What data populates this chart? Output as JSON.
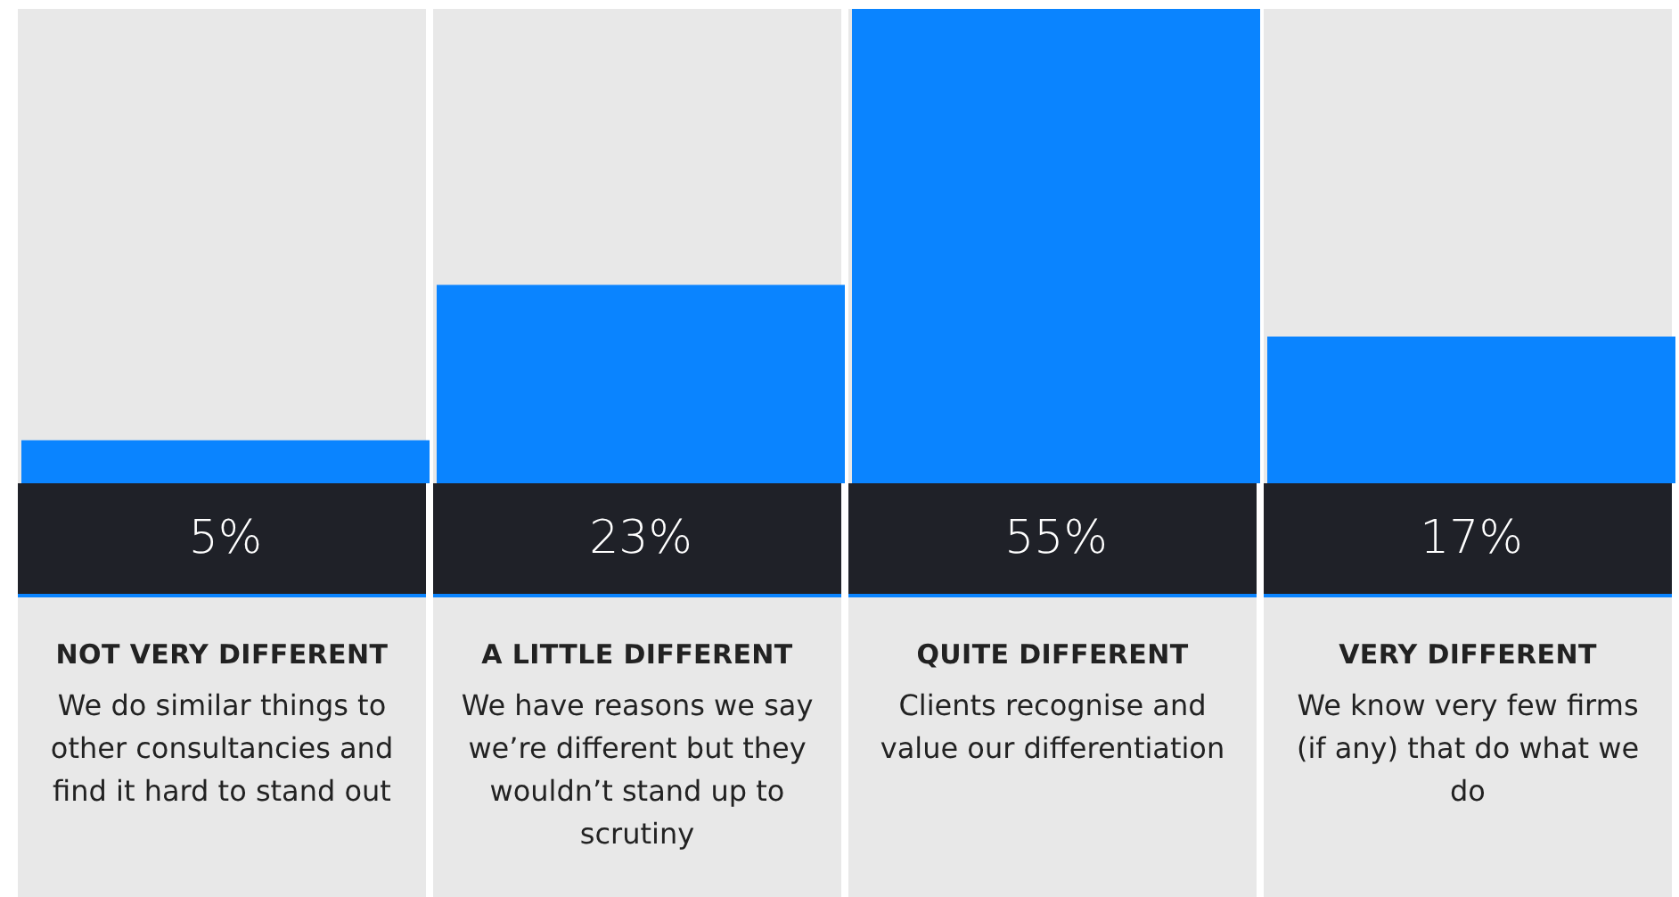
{
  "chart_data": {
    "type": "bar",
    "categories": [
      "NOT VERY DIFFERENT",
      "A LITTLE DIFFERENT",
      "QUITE DIFFERENT",
      "VERY DIFFERENT"
    ],
    "values": [
      5,
      23,
      55,
      17
    ],
    "value_labels": [
      "5%",
      "23%",
      "55%",
      "17%"
    ],
    "color": "#0a84ff",
    "annotations": [
      "We do similar things to other consultancies and find it hard to stand out",
      "We have reasons we say we’re different but they wouldn’t stand up to scrutiny",
      "Clients recognise and value our differentiation",
      "We know very few firms (if any) that do what we do"
    ]
  }
}
